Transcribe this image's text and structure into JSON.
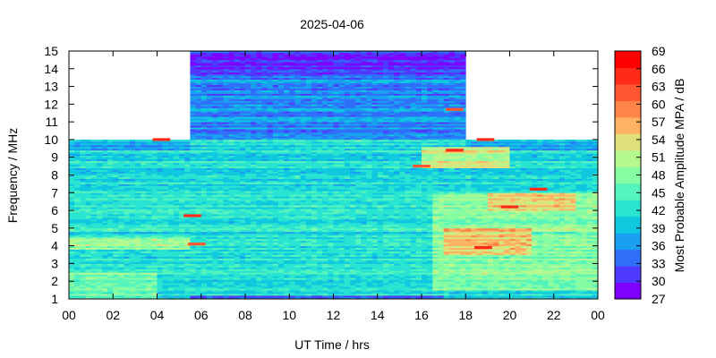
{
  "chart_data": {
    "type": "heatmap",
    "title": "2025-04-06",
    "xlabel": "UT Time / hrs",
    "ylabel": "Frequency / MHz",
    "colorbar_label": "Most Probable Amplitude MPA / dB",
    "x_ticks": [
      "00",
      "02",
      "04",
      "06",
      "08",
      "10",
      "12",
      "14",
      "16",
      "18",
      "20",
      "22",
      "00"
    ],
    "x_range_hours": [
      0,
      24
    ],
    "y_ticks": [
      "1",
      "2",
      "3",
      "4",
      "5",
      "6",
      "7",
      "8",
      "9",
      "10",
      "11",
      "12",
      "13",
      "14",
      "15"
    ],
    "y_range_mhz": [
      1,
      15
    ],
    "colorbar_ticks": [
      "27",
      "30",
      "33",
      "36",
      "39",
      "42",
      "45",
      "48",
      "51",
      "54",
      "57",
      "60",
      "63",
      "66",
      "69"
    ],
    "color_range_db": [
      27,
      69
    ],
    "colorbar_colors": [
      "#7f00ff",
      "#4f39ff",
      "#2f6ffa",
      "#1aa0f0",
      "#0fc8e0",
      "#2ae4d2",
      "#54f4bc",
      "#86fca3",
      "#b6f890",
      "#dee07a",
      "#ffb362",
      "#ff8448",
      "#ff5530",
      "#ff2a18",
      "#ff0000"
    ],
    "data_coverage": [
      {
        "from_hour": 0.0,
        "to_hour": 5.5,
        "max_mhz": 10
      },
      {
        "from_hour": 5.5,
        "to_hour": 18.0,
        "max_mhz": 15
      },
      {
        "from_hour": 18.0,
        "to_hour": 24.0,
        "max_mhz": 10
      }
    ],
    "regions": [
      {
        "hours": [
          0,
          24
        ],
        "mhz": [
          1,
          10
        ],
        "db": 42
      },
      {
        "hours": [
          5.5,
          18
        ],
        "mhz": [
          10,
          15
        ],
        "db": 36
      },
      {
        "hours": [
          0,
          5.5
        ],
        "mhz": [
          9.4,
          10
        ],
        "db": 38
      },
      {
        "hours": [
          18,
          24
        ],
        "mhz": [
          9.4,
          10
        ],
        "db": 38
      },
      {
        "hours": [
          5.5,
          18
        ],
        "mhz": [
          13.6,
          15
        ],
        "db": 31
      },
      {
        "hours": [
          0,
          4
        ],
        "mhz": [
          1,
          2.5
        ],
        "db": 47
      },
      {
        "hours": [
          16.5,
          24
        ],
        "mhz": [
          1.5,
          7
        ],
        "db": 48
      },
      {
        "hours": [
          17,
          21
        ],
        "mhz": [
          3.5,
          5
        ],
        "db": 55
      },
      {
        "hours": [
          16,
          20
        ],
        "mhz": [
          8.4,
          9.6
        ],
        "db": 52
      },
      {
        "hours": [
          5.5,
          17
        ],
        "mhz": [
          1,
          1.2
        ],
        "db": 35
      },
      {
        "hours": [
          19,
          23
        ],
        "mhz": [
          6,
          7
        ],
        "db": 54
      },
      {
        "hours": [
          0,
          5.5
        ],
        "mhz": [
          3.8,
          4.5
        ],
        "db": 49
      }
    ],
    "hot_streaks": [
      {
        "hour": 4.2,
        "mhz": 10,
        "db": 66
      },
      {
        "hour": 5.6,
        "mhz": 5.7,
        "db": 66
      },
      {
        "hour": 5.8,
        "mhz": 4.1,
        "db": 63
      },
      {
        "hour": 17.5,
        "mhz": 9.4,
        "db": 66
      },
      {
        "hour": 18.8,
        "mhz": 3.9,
        "db": 66
      },
      {
        "hour": 20.0,
        "mhz": 6.2,
        "db": 66
      },
      {
        "hour": 21.3,
        "mhz": 7.2,
        "db": 66
      },
      {
        "hour": 18.9,
        "mhz": 10,
        "db": 66
      },
      {
        "hour": 16.0,
        "mhz": 8.5,
        "db": 63
      },
      {
        "hour": 17.5,
        "mhz": 11.7,
        "db": 63
      }
    ]
  }
}
